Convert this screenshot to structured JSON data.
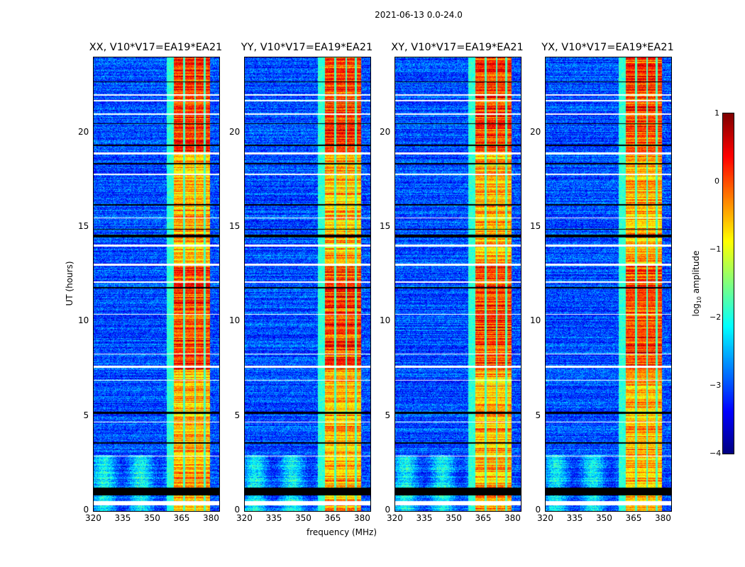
{
  "chart_data": {
    "type": "heatmap",
    "title": "2021-06-13 0.0-24.0",
    "xlabel": "frequency (MHz)",
    "ylabel": "UT (hours)",
    "xlim": [
      320,
      384
    ],
    "ylim": [
      0,
      24
    ],
    "xticks": [
      "320",
      "335",
      "350",
      "365",
      "380"
    ],
    "xtick_values": [
      320,
      335,
      350,
      365,
      380
    ],
    "yticks": [
      "0",
      "5",
      "10",
      "15",
      "20"
    ],
    "ytick_values": [
      0,
      5,
      10,
      15,
      20
    ],
    "panels": [
      {
        "title": "XX, V10*V17=EA19*EA21"
      },
      {
        "title": "YY, V10*V17=EA19*EA21"
      },
      {
        "title": "XY, V10*V17=EA19*EA21"
      },
      {
        "title": "YX, V10*V17=EA19*EA21"
      }
    ],
    "background_log_amp": -3,
    "rfi_band_mhz": [
      360.5,
      379
    ],
    "rfi_band_log_amp": [
      -1,
      0.8
    ],
    "rfi_gaps_mhz": [
      366,
      371.5,
      376.5
    ],
    "flagged_white_hours": [
      [
        0.3,
        0.55
      ],
      [
        13.0,
        13.1
      ],
      [
        14.0,
        14.12
      ],
      [
        18.9,
        19.0
      ],
      [
        15.5,
        15.55
      ],
      [
        7.6,
        7.7
      ],
      [
        8.3,
        8.35
      ],
      [
        2.9,
        2.95
      ],
      [
        4.7,
        4.75
      ],
      [
        6.9,
        6.95
      ],
      [
        17.8,
        17.85
      ],
      [
        21.7,
        21.75
      ],
      [
        22.0,
        22.05
      ],
      [
        21.0,
        21.04
      ],
      [
        10.4,
        10.44
      ],
      [
        12.1,
        12.15
      ]
    ],
    "flagged_black_hours": [
      [
        0.85,
        1.25
      ],
      [
        5.15,
        5.25
      ],
      [
        14.5,
        14.65
      ],
      [
        14.9,
        14.95
      ],
      [
        18.35,
        18.42
      ],
      [
        19.35,
        19.4
      ],
      [
        11.8,
        11.86
      ],
      [
        3.6,
        3.65
      ],
      [
        20.5,
        20.54
      ],
      [
        16.2,
        16.25
      ],
      [
        22.7,
        22.75
      ]
    ],
    "colorbar": {
      "label": "log10 amplitude",
      "label_main": "log",
      "label_sub": "10",
      "label_rest": " amplitude",
      "range": [
        -4,
        1
      ],
      "ticks": [
        "1",
        "0",
        "−1",
        "−2",
        "−3",
        "−4"
      ],
      "tick_values": [
        1,
        0,
        -1,
        -2,
        -3,
        -4
      ],
      "colormap": "jet"
    }
  }
}
